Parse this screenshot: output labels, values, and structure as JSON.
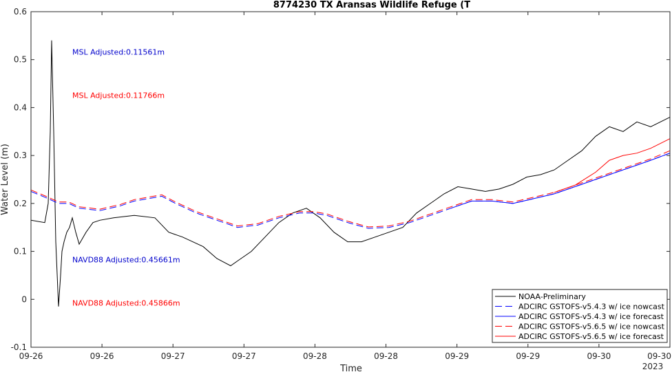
{
  "chart_data": {
    "type": "line",
    "title": "8774230 TX Aransas Wildlife Refuge (T",
    "xlabel": "Time",
    "ylabel": "Water Level (m)",
    "x_tick_labels": [
      "09-26",
      "09-26",
      "09-27",
      "09-27",
      "09-28",
      "09-28",
      "09-29",
      "09-29",
      "09-30",
      "09-30"
    ],
    "x_year_label": "2023",
    "y_ticks": [
      -0.1,
      0,
      0.1,
      0.2,
      0.3,
      0.4,
      0.5,
      0.6
    ],
    "y_tick_labels": [
      "-0.1",
      "0",
      "0.1",
      "0.2",
      "0.3",
      "0.4",
      "0.5",
      "0.6"
    ],
    "xlim": [
      0,
      9.28
    ],
    "ylim": [
      -0.1,
      0.6
    ],
    "grid": false,
    "legend_position": "bottom-right",
    "annotations": [
      {
        "text": "MSL Adjusted:0.11561m",
        "color": "#0000cc",
        "x": 0.6,
        "y": 0.51
      },
      {
        "text": "MSL Adjusted:0.11766m",
        "color": "#ff0000",
        "x": 0.6,
        "y": 0.42
      },
      {
        "text": "NAVD88 Adjusted:0.45661m",
        "color": "#0000cc",
        "x": 0.6,
        "y": 0.077
      },
      {
        "text": "NAVD88 Adjusted:0.45866m",
        "color": "#ff0000",
        "x": 0.6,
        "y": -0.013
      }
    ],
    "series": [
      {
        "name": "NOAA-Preliminary",
        "color": "#000000",
        "dash": "solid",
        "x": [
          0,
          0.2,
          0.25,
          0.28,
          0.3,
          0.33,
          0.36,
          0.4,
          0.43,
          0.45,
          0.48,
          0.52,
          0.56,
          0.6,
          0.65,
          0.7,
          0.8,
          0.9,
          1.0,
          1.2,
          1.5,
          1.8,
          2.0,
          2.2,
          2.5,
          2.7,
          2.9,
          3.0,
          3.2,
          3.4,
          3.6,
          3.8,
          4.0,
          4.2,
          4.4,
          4.5,
          4.6,
          4.8,
          5.0,
          5.2,
          5.4,
          5.6,
          5.8,
          6.0,
          6.2,
          6.4,
          6.6,
          6.8,
          7.0,
          7.2,
          7.4,
          7.6,
          7.8,
          8.0,
          8.2,
          8.4,
          8.6,
          8.8,
          9.0,
          9.28
        ],
        "values": [
          0.165,
          0.16,
          0.2,
          0.35,
          0.54,
          0.35,
          0.12,
          -0.015,
          0.05,
          0.1,
          0.12,
          0.14,
          0.15,
          0.17,
          0.14,
          0.115,
          0.14,
          0.16,
          0.165,
          0.17,
          0.175,
          0.17,
          0.14,
          0.13,
          0.11,
          0.085,
          0.07,
          0.08,
          0.1,
          0.13,
          0.16,
          0.18,
          0.19,
          0.17,
          0.14,
          0.13,
          0.12,
          0.12,
          0.13,
          0.14,
          0.15,
          0.18,
          0.2,
          0.22,
          0.235,
          0.23,
          0.225,
          0.23,
          0.24,
          0.255,
          0.26,
          0.27,
          0.29,
          0.31,
          0.34,
          0.36,
          0.35,
          0.37,
          0.36,
          0.38
        ]
      },
      {
        "name": "ADCIRC GSTOFS-v5.4.3 w/ ice nowcast",
        "color": "#0000ff",
        "dash": "dashed",
        "x": [
          0,
          0.25,
          0.4,
          0.55,
          0.7,
          1.0,
          1.3,
          1.5,
          1.7,
          1.9,
          2.1,
          2.4,
          2.7,
          3.0,
          3.3,
          3.6,
          3.9,
          4.1,
          4.3,
          4.6,
          4.9,
          5.2,
          5.5,
          5.8,
          6.1,
          6.4,
          6.7,
          7.0,
          7.3,
          7.6,
          7.9,
          8.2,
          8.5,
          8.8,
          9.0,
          9.28
        ],
        "values": [
          0.225,
          0.21,
          0.2,
          0.2,
          0.19,
          0.185,
          0.195,
          0.205,
          0.21,
          0.215,
          0.2,
          0.18,
          0.165,
          0.15,
          0.155,
          0.17,
          0.18,
          0.18,
          0.175,
          0.16,
          0.148,
          0.15,
          0.16,
          0.175,
          0.19,
          0.205,
          0.205,
          0.2,
          0.21,
          0.22,
          0.235,
          0.25,
          0.265,
          0.28,
          0.29,
          0.305
        ]
      },
      {
        "name": "ADCIRC GSTOFS-v5.4.3 w/ ice forecast",
        "color": "#0000ff",
        "dash": "solid",
        "x": [
          6.1,
          6.4,
          6.7,
          7.0,
          7.3,
          7.6,
          7.9,
          8.2,
          8.5,
          8.8,
          9.0,
          9.28
        ],
        "values": [
          0.19,
          0.205,
          0.205,
          0.2,
          0.21,
          0.22,
          0.235,
          0.25,
          0.265,
          0.28,
          0.29,
          0.305
        ]
      },
      {
        "name": "ADCIRC GSTOFS-v5.6.5 w/ ice nowcast",
        "color": "#ff0000",
        "dash": "dashed",
        "x": [
          0,
          0.25,
          0.4,
          0.55,
          0.7,
          1.0,
          1.3,
          1.5,
          1.7,
          1.9,
          2.1,
          2.4,
          2.7,
          3.0,
          3.3,
          3.6,
          3.9,
          4.1,
          4.3,
          4.6,
          4.9,
          5.2,
          5.5,
          5.8,
          6.1,
          6.4,
          6.7,
          7.0,
          7.3,
          7.6,
          7.9,
          8.2,
          8.5,
          8.8,
          9.0,
          9.28
        ],
        "values": [
          0.228,
          0.213,
          0.203,
          0.203,
          0.193,
          0.188,
          0.198,
          0.208,
          0.213,
          0.218,
          0.203,
          0.183,
          0.168,
          0.153,
          0.158,
          0.173,
          0.183,
          0.183,
          0.178,
          0.163,
          0.151,
          0.153,
          0.163,
          0.178,
          0.193,
          0.208,
          0.208,
          0.203,
          0.213,
          0.223,
          0.238,
          0.253,
          0.268,
          0.283,
          0.293,
          0.31
        ]
      },
      {
        "name": "ADCIRC GSTOFS-v5.6.5 w/ ice forecast",
        "color": "#ff0000",
        "dash": "solid",
        "x": [
          7.6,
          7.9,
          8.2,
          8.4,
          8.6,
          8.8,
          9.0,
          9.28
        ],
        "values": [
          0.223,
          0.238,
          0.265,
          0.29,
          0.3,
          0.305,
          0.315,
          0.335
        ]
      }
    ]
  }
}
